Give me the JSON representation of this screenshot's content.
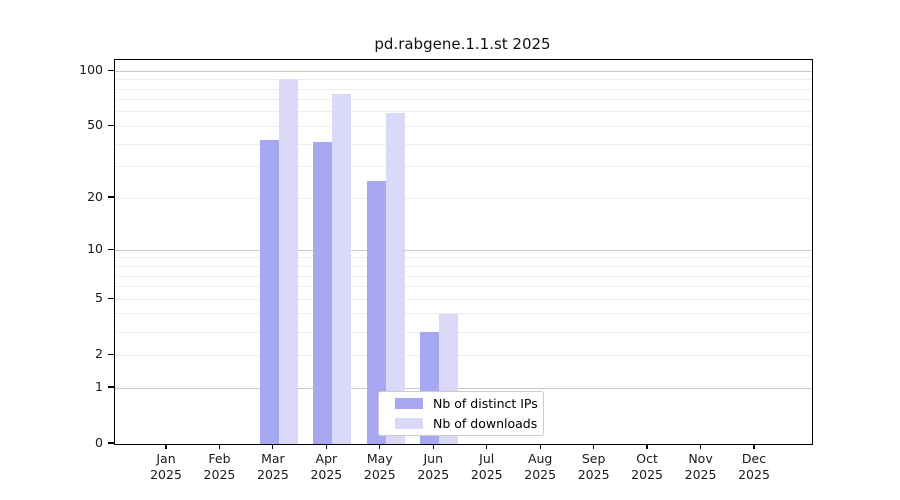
{
  "chart_data": {
    "type": "bar",
    "title": "pd.rabgene.1.1.st 2025",
    "categories": [
      "Jan",
      "Feb",
      "Mar",
      "Apr",
      "May",
      "Jun",
      "Jul",
      "Aug",
      "Sep",
      "Oct",
      "Nov",
      "Dec"
    ],
    "category_year": "2025",
    "series": [
      {
        "name": "Nb of distinct IPs",
        "color": "#a7a7f2",
        "values": [
          42,
          41,
          25,
          3,
          0,
          0,
          0,
          0,
          0,
          0,
          0,
          0
        ]
      },
      {
        "name": "Nb of downloads",
        "color": "#dadaf8",
        "values": [
          91,
          75,
          59,
          4,
          0,
          0,
          0,
          0,
          0,
          0,
          0,
          0
        ]
      }
    ],
    "yscale": "log1p",
    "ylim": [
      0,
      115
    ],
    "yticks": [
      0,
      1,
      2,
      5,
      10,
      20,
      50,
      100
    ],
    "major_gridline_values": [
      1,
      10,
      100
    ],
    "minor_gridline_values": [
      3,
      4,
      6,
      7,
      8,
      9,
      30,
      40,
      60,
      70,
      80,
      90
    ],
    "legend_position": "lower center",
    "grid": "horizontal",
    "colors": {
      "major_grid": "#c9c9c9",
      "minor_grid": "#ededed",
      "axis": "#000000",
      "text": "#1a1a1a"
    }
  }
}
